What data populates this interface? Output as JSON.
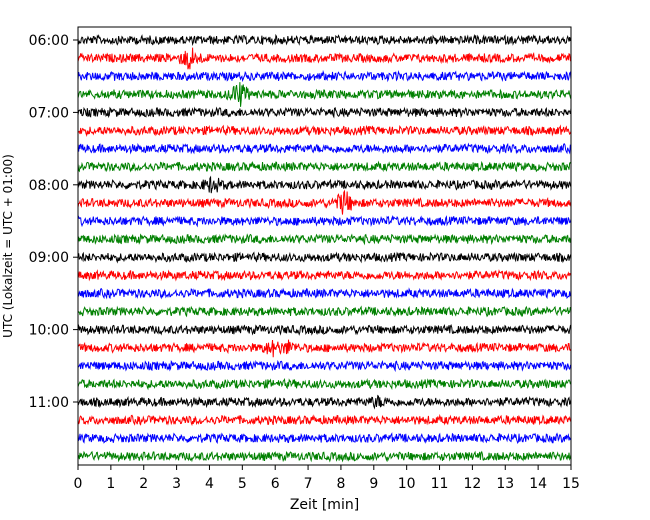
{
  "chart_data": {
    "type": "line",
    "title": "",
    "xlabel": "Zeit  [min]",
    "ylabel": "UTC (Lokalzeit = UTC + 01:00)",
    "xlim": [
      0,
      15
    ],
    "x_ticks": [
      "0",
      "1",
      "2",
      "3",
      "4",
      "5",
      "6",
      "7",
      "8",
      "9",
      "10",
      "11",
      "12",
      "13",
      "14",
      "15"
    ],
    "y_ticks": [
      "06:00",
      "07:00",
      "08:00",
      "09:00",
      "10:00",
      "11:00"
    ],
    "trace_colors": [
      "#000000",
      "#ff0000",
      "#0000ff",
      "#008000"
    ],
    "trace_interval_min": 15,
    "trace_start": "06:00",
    "traces": [
      {
        "start": "06:00",
        "color": "#000000"
      },
      {
        "start": "06:15",
        "color": "#ff0000"
      },
      {
        "start": "06:30",
        "color": "#0000ff"
      },
      {
        "start": "06:45",
        "color": "#008000"
      },
      {
        "start": "07:00",
        "color": "#000000"
      },
      {
        "start": "07:15",
        "color": "#ff0000"
      },
      {
        "start": "07:30",
        "color": "#0000ff"
      },
      {
        "start": "07:45",
        "color": "#008000"
      },
      {
        "start": "08:00",
        "color": "#000000"
      },
      {
        "start": "08:15",
        "color": "#ff0000"
      },
      {
        "start": "08:30",
        "color": "#0000ff"
      },
      {
        "start": "08:45",
        "color": "#008000"
      },
      {
        "start": "09:00",
        "color": "#000000"
      },
      {
        "start": "09:15",
        "color": "#ff0000"
      },
      {
        "start": "09:30",
        "color": "#0000ff"
      },
      {
        "start": "09:45",
        "color": "#008000"
      },
      {
        "start": "10:00",
        "color": "#000000"
      },
      {
        "start": "10:15",
        "color": "#ff0000"
      },
      {
        "start": "10:30",
        "color": "#0000ff"
      },
      {
        "start": "10:45",
        "color": "#008000"
      },
      {
        "start": "11:00",
        "color": "#000000"
      },
      {
        "start": "11:15",
        "color": "#ff0000"
      },
      {
        "start": "11:30",
        "color": "#0000ff"
      },
      {
        "start": "11:45",
        "color": "#008000"
      }
    ],
    "events": [
      {
        "trace": "06:15",
        "minute": 3.4,
        "amplitude": 2.8
      },
      {
        "trace": "06:45",
        "minute": 4.9,
        "amplitude": 3.0
      },
      {
        "trace": "08:00",
        "minute": 4.1,
        "amplitude": 1.8
      },
      {
        "trace": "08:15",
        "minute": 8.1,
        "amplitude": 3.0
      },
      {
        "trace": "10:15",
        "minute": 5.9,
        "amplitude": 1.5
      },
      {
        "trace": "10:15",
        "minute": 6.4,
        "amplitude": 1.2
      },
      {
        "trace": "11:00",
        "minute": 9.1,
        "amplitude": 0.9
      }
    ],
    "grid": false,
    "legend": "none"
  }
}
